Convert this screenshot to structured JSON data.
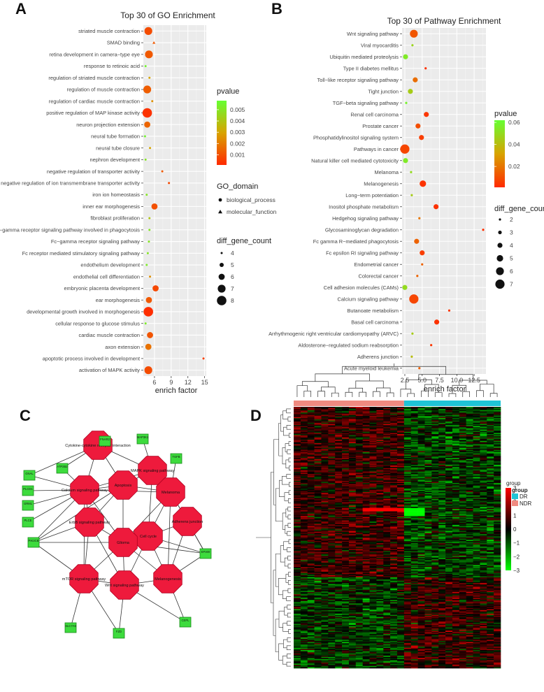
{
  "panels": {
    "a": "A",
    "b": "B",
    "c": "C",
    "d": "D"
  },
  "chart_data": [
    {
      "id": "go",
      "type": "scatter",
      "title": "Top 30 of GO Enrichment",
      "xlabel": "enrich factor",
      "ylabel": "",
      "xlim": [
        4,
        15.3
      ],
      "xticks": [
        6,
        9,
        12,
        15
      ],
      "grid": true,
      "categories": [
        "striated muscle contraction",
        "SMAD binding",
        "retina development in camera−type eye",
        "response to retinoic acid",
        "regulation of striated muscle contraction",
        "regulation of muscle contraction",
        "regulation of cardiac muscle contraction",
        "positive regulation of MAP kinase activity",
        "neuron projection extension",
        "neural tube formation",
        "neural tube closure",
        "nephron development",
        "negative regulation of transporter activity",
        "negative regulation of ion transmembrane transporter activity",
        "iron ion homeostasis",
        "inner ear morphogenesis",
        "fibroblast proliferation",
        "Fc−gamma receptor signaling pathway involved in phagocytosis",
        "Fc−gamma receptor signaling pathway",
        "Fc receptor mediated stimulatory signaling pathway",
        "endothelium development",
        "endothelial cell differentiation",
        "embryonic placenta development",
        "ear morphogenesis",
        "developmental growth involved in morphogenesis",
        "cellular response to glucose stimulus",
        "cardiac muscle contraction",
        "axon extension",
        "apoptotic process involved in development",
        "activation of MAPK activity"
      ],
      "x": [
        4.9,
        5.9,
        5.0,
        4.4,
        5.1,
        4.7,
        5.6,
        4.7,
        4.7,
        4.3,
        5.2,
        4.4,
        7.4,
        8.6,
        4.6,
        6.0,
        5.1,
        5.1,
        5.0,
        4.8,
        4.6,
        5.2,
        6.2,
        5.0,
        4.9,
        4.4,
        5.2,
        4.9,
        14.8,
        4.9
      ],
      "pvalue": [
        0.0009,
        0.0012,
        0.0012,
        0.0055,
        0.003,
        0.0013,
        0.0025,
        0.0003,
        0.0015,
        0.0055,
        0.003,
        0.005,
        0.0012,
        0.0008,
        0.005,
        0.001,
        0.004,
        0.005,
        0.005,
        0.005,
        0.0052,
        0.0025,
        0.0008,
        0.0012,
        0.0002,
        0.0052,
        0.0011,
        0.0018,
        0.0006,
        0.0009
      ],
      "diff_gene_count": [
        7,
        4,
        7,
        4,
        4,
        7,
        4,
        8,
        6,
        4,
        4,
        4,
        4,
        4,
        4,
        6,
        4,
        4,
        4,
        4,
        4,
        4,
        6,
        6,
        8,
        4,
        6,
        6,
        4,
        7
      ],
      "go_domain": [
        "biological_process",
        "molecular_function",
        "biological_process",
        "biological_process",
        "biological_process",
        "biological_process",
        "biological_process",
        "biological_process",
        "biological_process",
        "biological_process",
        "biological_process",
        "biological_process",
        "biological_process",
        "biological_process",
        "biological_process",
        "biological_process",
        "biological_process",
        "biological_process",
        "biological_process",
        "biological_process",
        "biological_process",
        "biological_process",
        "biological_process",
        "biological_process",
        "biological_process",
        "biological_process",
        "biological_process",
        "biological_process",
        "biological_process",
        "biological_process"
      ],
      "legend": {
        "pvalue_title": "pvalue",
        "pvalue_ticks": [
          "0.005",
          "0.004",
          "0.003",
          "0.002",
          "0.001"
        ],
        "pvalue_tick_values": [
          0.005,
          0.004,
          0.003,
          0.002,
          0.001
        ],
        "prange": [
          0.0001,
          0.0058
        ],
        "domain_title": "GO_domain",
        "domains": [
          "biological_process",
          "molecular_function"
        ],
        "count_title": "diff_gene_count",
        "counts": [
          4,
          5,
          6,
          7,
          8
        ]
      }
    },
    {
      "id": "kegg",
      "type": "scatter",
      "title": "Top 30 of Pathway Enrichment",
      "xlabel": "enrich factor",
      "ylabel": "",
      "xlim": [
        2.1,
        14.2
      ],
      "xticks": [
        2.5,
        5.0,
        7.5,
        10.0,
        12.5
      ],
      "xtick_labels": [
        "2.5",
        "5.0",
        "7.5",
        "10.0",
        "12.5"
      ],
      "grid": true,
      "categories": [
        "Wnt signaling pathway",
        "Viral myocarditis",
        "Ubiquitin mediated proteolysis",
        "Type II diabetes mellitus",
        "Toll−like receptor signaling pathway",
        "Tight junction",
        "TGF−beta signaling pathway",
        "Renal cell carcinoma",
        "Prostate cancer",
        "Phosphatidylinositol signaling system",
        "Pathways in cancer",
        "Natural killer cell mediated cytotoxicity",
        "Melanoma",
        "Melanogenesis",
        "Long−term potentiation",
        "Inositol phosphate metabolism",
        "Hedgehog signaling pathway",
        "Glycosaminoglycan degradation",
        "Fc gamma R−mediated phagocytosis",
        "Fc epsilon RI signaling pathway",
        "Endometrial cancer",
        "Colorectal cancer",
        "Cell adhesion molecules (CAMs)",
        "Calcium signaling pathway",
        "Butanoate metabolism",
        "Basal cell carcinoma",
        "Arrhythmogenic right ventricular cardiomyopathy (ARVC)",
        "Aldosterone−regulated sodium reabsorption",
        "Adherens junction",
        "Acute myeloid leukemia"
      ],
      "x": [
        3.8,
        3.6,
        2.6,
        5.5,
        4.0,
        3.3,
        2.7,
        5.6,
        4.4,
        4.9,
        2.5,
        2.6,
        3.4,
        5.1,
        3.5,
        7.0,
        4.6,
        13.8,
        4.2,
        5.0,
        5.0,
        4.3,
        2.5,
        3.8,
        8.9,
        7.1,
        3.6,
        6.3,
        3.5,
        4.6
      ],
      "pvalue": [
        0.012,
        0.048,
        0.055,
        0.003,
        0.018,
        0.045,
        0.058,
        0.004,
        0.01,
        0.006,
        0.008,
        0.055,
        0.05,
        0.003,
        0.045,
        0.003,
        0.02,
        0.002,
        0.015,
        0.006,
        0.015,
        0.015,
        0.05,
        0.008,
        0.004,
        0.003,
        0.045,
        0.004,
        0.04,
        0.015
      ],
      "diff_gene_count": [
        6,
        2,
        4,
        2,
        4,
        4,
        2,
        4,
        4,
        4,
        7,
        4,
        2,
        5,
        2,
        4,
        2,
        2,
        4,
        4,
        2,
        2,
        4,
        7,
        2,
        4,
        2,
        2,
        2,
        2
      ],
      "legend": {
        "pvalue_title": "pvalue",
        "pvalue_ticks": [
          "0.06",
          "0.04",
          "0.02"
        ],
        "pvalue_tick_values": [
          0.06,
          0.04,
          0.02
        ],
        "prange": [
          0.001,
          0.062
        ],
        "count_title": "diff_gene_count",
        "counts": [
          2,
          3,
          4,
          5,
          6,
          7
        ]
      }
    },
    {
      "id": "heatmap",
      "type": "heatmap",
      "title": "",
      "legend": {
        "color_title": "group",
        "color_ticks": [
          "3",
          "2",
          "1",
          "0",
          "−1",
          "−2",
          "−3"
        ],
        "color_tick_values": [
          3,
          2,
          1,
          0,
          -1,
          -2,
          -3
        ],
        "group_title": "group",
        "groups": [
          {
            "name": "DR",
            "color": "#1fc4d6"
          },
          {
            "name": "NDR",
            "color": "#f08a80"
          }
        ]
      },
      "columns_ndr": 16,
      "columns_dr": 14
    }
  ],
  "network": {
    "pathways": [
      {
        "label": "Cytokine-cytokine receptor interaction"
      },
      {
        "label": "MAPK signaling pathway"
      },
      {
        "label": "Calcium signaling pathway"
      },
      {
        "label": "Apoptosis"
      },
      {
        "label": "Melanoma"
      },
      {
        "label": "Adherens junction"
      },
      {
        "label": "ErbB signaling pathway"
      },
      {
        "label": "Cell cycle"
      },
      {
        "label": "Glioma"
      },
      {
        "label": "mTOR signaling pathway"
      },
      {
        "label": "Wnt signaling pathway"
      },
      {
        "label": "Melanogenesis"
      }
    ],
    "genes": [
      {
        "label": "ATP2B2"
      },
      {
        "label": "FNAR2"
      },
      {
        "label": "MAP3K1"
      },
      {
        "label": "GNAL"
      },
      {
        "label": "TGFB"
      },
      {
        "label": "PLCD1"
      },
      {
        "label": "GRM1"
      },
      {
        "label": "PLCE"
      },
      {
        "label": "PIK3CB"
      },
      {
        "label": "EP300"
      },
      {
        "label": "SLC7A5"
      },
      {
        "label": "FZD"
      },
      {
        "label": "CEPL"
      }
    ],
    "node_color": "#ee1a3c",
    "gene_color": "#3ddb3d"
  },
  "colors": {
    "p_low": "#ff2a00",
    "p_mid": "#d8a300",
    "p_high": "#66ff33",
    "panel_bg": "#ebebeb"
  }
}
